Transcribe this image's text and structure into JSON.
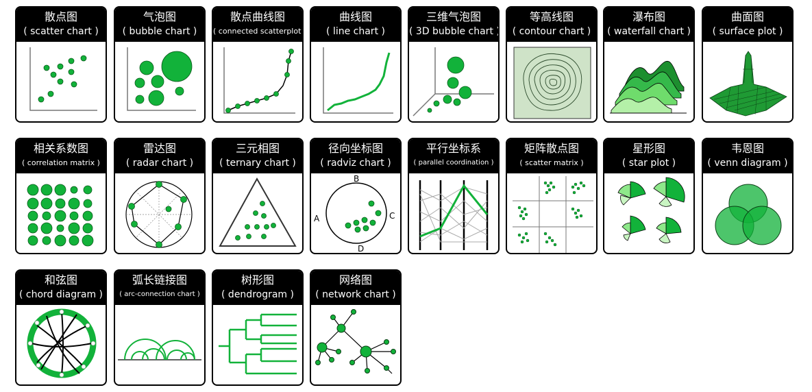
{
  "colors": {
    "accent": "#12b23a",
    "accent_dark": "#0a7a25",
    "accent_light": "#8ee88a",
    "header": "#000000"
  },
  "cards": [
    {
      "id": "scatter",
      "zh": "散点图",
      "en": "( scatter chart )"
    },
    {
      "id": "bubble",
      "zh": "气泡图",
      "en": "( bubble chart )"
    },
    {
      "id": "connected",
      "zh": "散点曲线图",
      "en": "( connected scatterplot )"
    },
    {
      "id": "line",
      "zh": "曲线图",
      "en": "( line chart )"
    },
    {
      "id": "bubble3d",
      "zh": "三维气泡图",
      "en": "( 3D bubble chart )"
    },
    {
      "id": "contour",
      "zh": "等高线图",
      "en": "( contour chart )"
    },
    {
      "id": "waterfall",
      "zh": "瀑布图",
      "en": "( waterfall chart )"
    },
    {
      "id": "surface",
      "zh": "曲面图",
      "en": "( surface plot )"
    },
    {
      "id": "correlation",
      "zh": "相关系数图",
      "en": "( correlation matrix )"
    },
    {
      "id": "radar",
      "zh": "雷达图",
      "en": "( radar chart )"
    },
    {
      "id": "ternary",
      "zh": "三元相图",
      "en": "( ternary chart )"
    },
    {
      "id": "radviz",
      "zh": "径向坐标图",
      "en": "( radviz chart )"
    },
    {
      "id": "parallel",
      "zh": "平行坐标系",
      "en": "( parallel coordination )"
    },
    {
      "id": "scattermatrix",
      "zh": "矩阵散点图",
      "en": "( scatter matrix )"
    },
    {
      "id": "star",
      "zh": "星形图",
      "en": "( star plot )"
    },
    {
      "id": "venn",
      "zh": "韦恩图",
      "en": "( venn diagram )"
    },
    {
      "id": "chord",
      "zh": "和弦图",
      "en": "( chord diagram )"
    },
    {
      "id": "arc",
      "zh": "弧长链接图",
      "en": "( arc-connection chart )"
    },
    {
      "id": "dendrogram",
      "zh": "树形图",
      "en": "( dendrogram )"
    },
    {
      "id": "network",
      "zh": "网络图",
      "en": "( network chart )"
    }
  ],
  "radviz_labels": {
    "a": "A",
    "b": "B",
    "c": "C",
    "d": "D"
  }
}
